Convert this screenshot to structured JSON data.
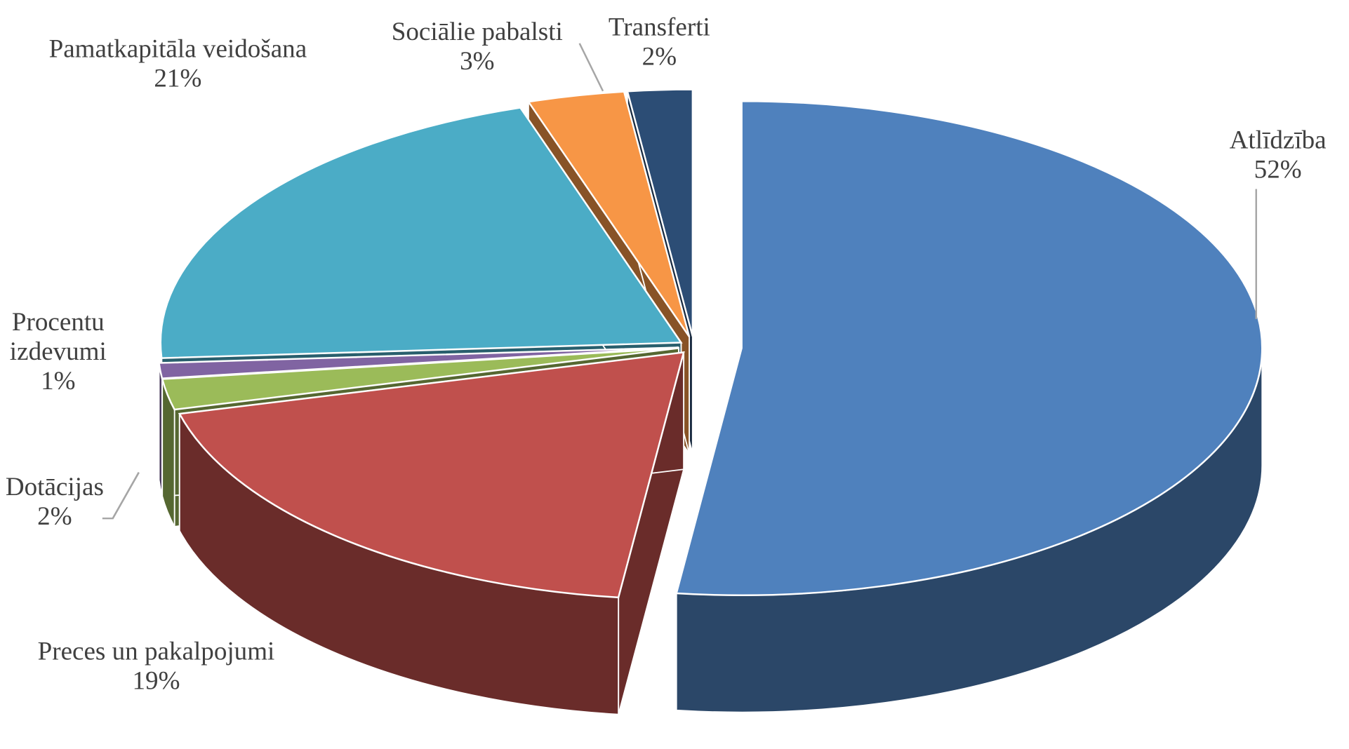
{
  "chart_data": {
    "type": "pie3d",
    "categories": [
      "Atlīdzība",
      "Preces un pakalpojumi",
      "Dotācijas",
      "Procentu izdevumi",
      "Pamatkapitāla veidošana",
      "Sociālie pabalsti",
      "Transferti"
    ],
    "values": [
      52,
      19,
      2,
      1,
      21,
      3,
      2
    ],
    "value_labels": [
      "52%",
      "19%",
      "2%",
      "1%",
      "21%",
      "3%",
      "2%"
    ],
    "colors": [
      "#4f81bd",
      "#c0504d",
      "#9bbb59",
      "#8064a2",
      "#4bacc6",
      "#f79646",
      "#2c4d75"
    ]
  }
}
